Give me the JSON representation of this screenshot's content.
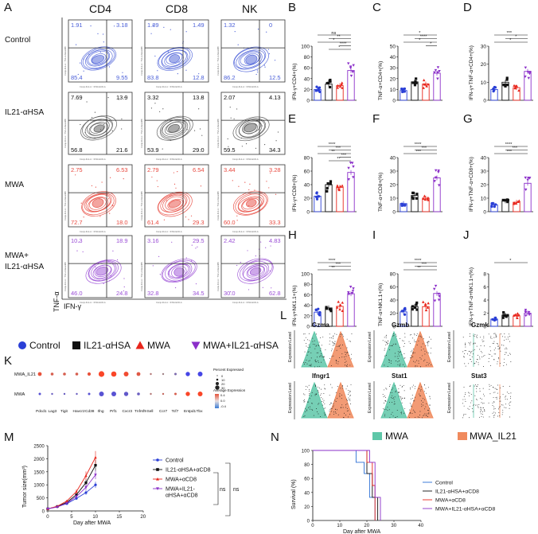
{
  "panels": {
    "A": "A",
    "B": "B",
    "C": "C",
    "D": "D",
    "E": "E",
    "F": "F",
    "G": "G",
    "H": "H",
    "I": "I",
    "J": "J",
    "K": "K",
    "L": "L",
    "M": "M",
    "N": "N"
  },
  "flow": {
    "columns": [
      "CD4",
      "CD8",
      "NK"
    ],
    "rows": [
      "Control",
      "IL21-αHSA",
      "MWA",
      "MWA+\nIL21-αHSA"
    ],
    "y_axis_label": "TNF-α",
    "x_axis_label": "IFN-γ",
    "tiny_axis_texts": [
      "Comp-FL2-A :: IFNG ECD-A",
      "Comp-FL3-A :: TNF-A Alexa488"
    ],
    "colors": [
      "#4a5fd8",
      "#555555",
      "#e8493f",
      "#9b4fd6"
    ],
    "quadrants": [
      [
        [
          "1.91",
          "3.18",
          "85.4",
          "9.55"
        ],
        [
          "1.89",
          "1.49",
          "83.8",
          "12.8"
        ],
        [
          "1.32",
          "0",
          "86.2",
          "12.5"
        ]
      ],
      [
        [
          "7.69",
          "13.9",
          "56.8",
          "21.6"
        ],
        [
          "3.32",
          "13.8",
          "53.9",
          "29.0"
        ],
        [
          "2.07",
          "4.13",
          "59.5",
          "34.3"
        ]
      ],
      [
        [
          "2.75",
          "6.53",
          "72.7",
          "18.0"
        ],
        [
          "2.79",
          "6.54",
          "61.4",
          "29.3"
        ],
        [
          "3.44",
          "3.28",
          "60.0",
          "33.3"
        ]
      ],
      [
        [
          "10.3",
          "18.9",
          "46.0",
          "24.8"
        ],
        [
          "3.16",
          "29.5",
          "32.8",
          "34.5"
        ],
        [
          "2.42",
          "4.83",
          "30.0",
          "62.8"
        ]
      ]
    ]
  },
  "legend_groups": {
    "items": [
      {
        "label": "Control",
        "shape": "circle",
        "color": "#2a3fd6"
      },
      {
        "label": "IL21-αHSA",
        "shape": "square",
        "color": "#111111"
      },
      {
        "label": "MWA",
        "shape": "triangle",
        "color": "#e8261c"
      },
      {
        "label": "MWA+IL21-αHSA",
        "shape": "triangle-down",
        "color": "#8b2fc9"
      }
    ]
  },
  "chart_data": [
    {
      "panel": "B",
      "type": "bar",
      "ylabel": "IFN-γ+CD4+(%)",
      "ylim": [
        0,
        100
      ],
      "yticks": [
        "0",
        "20",
        "40",
        "60",
        "80",
        "100"
      ],
      "categories": [
        "Control",
        "IL21-αHSA",
        "MWA",
        "MWA+IL21-αHSA"
      ],
      "values": [
        20,
        30,
        27,
        55
      ],
      "sig": [
        "ns",
        "**",
        "*",
        "****",
        "*"
      ]
    },
    {
      "panel": "C",
      "type": "bar",
      "ylabel": "TNF-α+CD4+(%)",
      "ylim": [
        0,
        50
      ],
      "yticks": [
        "0",
        "10",
        "20",
        "30",
        "40",
        "50"
      ],
      "categories": [
        "Control",
        "IL21-αHSA",
        "MWA",
        "MWA+IL21-αHSA"
      ],
      "values": [
        9,
        17,
        15,
        25
      ],
      "sig": [
        "*",
        "****",
        "*",
        "*"
      ]
    },
    {
      "panel": "D",
      "type": "bar",
      "ylabel": "IFN-γ+TNF-α+CD4+(%)",
      "ylim": [
        0,
        30
      ],
      "yticks": [
        "0",
        "10",
        "20",
        "30"
      ],
      "categories": [
        "Control",
        "IL21-αHSA",
        "MWA",
        "MWA+IL21-αHSA"
      ],
      "values": [
        6,
        10,
        7,
        16
      ],
      "sig": [
        "***",
        "*",
        "*"
      ]
    },
    {
      "panel": "E",
      "type": "bar",
      "ylabel": "IFN-γ+CD8+(%)",
      "ylim": [
        0,
        80
      ],
      "yticks": [
        "0",
        "20",
        "40",
        "60",
        "80"
      ],
      "categories": [
        "Control",
        "IL21-αHSA",
        "MWA",
        "MWA+IL21-αHSA"
      ],
      "values": [
        23,
        40,
        36,
        58
      ],
      "sig": [
        "****",
        "***",
        "**",
        "***",
        "**"
      ]
    },
    {
      "panel": "F",
      "type": "bar",
      "ylabel": "TNF-α+CD8+(%)",
      "ylim": [
        0,
        40
      ],
      "yticks": [
        "0",
        "10",
        "20",
        "30",
        "40"
      ],
      "categories": [
        "Control",
        "IL21-αHSA",
        "MWA",
        "MWA+IL21-αHSA"
      ],
      "values": [
        6,
        12,
        10,
        25
      ],
      "sig": [
        "****",
        "***",
        "***"
      ]
    },
    {
      "panel": "G",
      "type": "bar",
      "ylabel": "IFN-γ+TNF-α+CD8+(%)",
      "ylim": [
        0,
        40
      ],
      "yticks": [
        "0",
        "10",
        "20",
        "30",
        "40"
      ],
      "categories": [
        "Control",
        "IL21-αHSA",
        "MWA",
        "MWA+IL21-αHSA"
      ],
      "values": [
        5,
        8,
        7,
        21
      ],
      "sig": [
        "****",
        "***",
        "***"
      ]
    },
    {
      "panel": "H",
      "type": "bar",
      "ylabel": "IFN-γ+NK1.1+(%)",
      "ylim": [
        0,
        100
      ],
      "yticks": [
        "0",
        "20",
        "40",
        "60",
        "80",
        "100"
      ],
      "categories": [
        "Control",
        "IL21-αHSA",
        "MWA",
        "MWA+IL21-αHSA"
      ],
      "values": [
        27,
        35,
        38,
        62
      ],
      "sig": [
        "****",
        "***",
        "**"
      ]
    },
    {
      "panel": "I",
      "type": "bar",
      "ylabel": "TNF-α+NK1.1+(%)",
      "ylim": [
        0,
        80
      ],
      "yticks": [
        "0",
        "20",
        "40",
        "60",
        "80"
      ],
      "categories": [
        "Control",
        "IL21-αHSA",
        "MWA",
        "MWA+IL21-αHSA"
      ],
      "values": [
        22,
        30,
        30,
        50
      ],
      "sig": [
        "****",
        "***",
        "**"
      ]
    },
    {
      "panel": "J",
      "type": "bar",
      "ylabel": "IFN-γ+TNF-α+NK1.1+(%)",
      "ylim": [
        0,
        8
      ],
      "yticks": [
        "0",
        "2",
        "4",
        "6",
        "8"
      ],
      "categories": [
        "Control",
        "IL21-αHSA",
        "MWA",
        "MWA+IL21-αHSA"
      ],
      "values": [
        1.1,
        1.7,
        1.6,
        2.0
      ],
      "sig": [
        "*"
      ]
    },
    {
      "panel": "K",
      "type": "scatter",
      "rows": [
        "MWA_IL21",
        "MWA"
      ],
      "genes": [
        "Pdcd1",
        "Lag3",
        "Tigit",
        "Havcr2",
        "Cd38",
        "Ifng",
        "Prf1",
        "Cxcr3",
        "Tnfrsf9",
        "Sell",
        "Ccr7",
        "Tcf7",
        "Entpd1",
        "Tbx"
      ],
      "sizes_top": [
        8,
        6,
        6,
        6,
        7,
        12,
        11,
        10,
        8,
        4,
        4,
        5,
        9,
        10
      ],
      "colors_top": [
        0.4,
        0.3,
        0.3,
        0.3,
        0.4,
        0.5,
        0.5,
        0.45,
        0.35,
        0.1,
        0.0,
        -0.2,
        -0.5,
        -0.5
      ],
      "sizes_bottom": [
        5,
        4,
        4,
        4,
        5,
        10,
        10,
        9,
        6,
        4,
        4,
        5,
        9,
        10
      ],
      "colors_bottom": [
        -0.4,
        -0.3,
        -0.3,
        -0.3,
        -0.4,
        -0.4,
        -0.4,
        -0.35,
        -0.3,
        0.1,
        0.2,
        0.3,
        0.5,
        0.5
      ],
      "legend_size_title": "Percent Expressed",
      "size_ticks": [
        "0",
        "10",
        "20",
        "30"
      ],
      "legend_color_title": "Average Expression",
      "color_ticks": [
        "0.4",
        "0.0",
        "-0.4"
      ]
    },
    {
      "panel": "L",
      "type": "violin",
      "genes": [
        "Gzma",
        "Gzmb",
        "Gzmk",
        "Ifngr1",
        "Stat1",
        "Stat3"
      ],
      "ylabel": "Expression Level",
      "groups": [
        "MWA",
        "MWA_IL21"
      ],
      "group_colors": [
        "#5ec7a8",
        "#f08a5d"
      ]
    },
    {
      "panel": "M",
      "type": "line",
      "xlabel": "Day after MWA",
      "ylabel": "Tumor size(mm³)",
      "ylim": [
        0,
        2500
      ],
      "xlim": [
        0,
        20
      ],
      "yticks": [
        "0",
        "500",
        "1000",
        "1500",
        "2000",
        "2500"
      ],
      "xticks": [
        "0",
        "5",
        "10",
        "15",
        "20"
      ],
      "x": [
        0,
        2,
        4,
        6,
        8,
        10
      ],
      "series": [
        {
          "name": "Control",
          "color": "#2a3fd6",
          "values": [
            80,
            160,
            280,
            480,
            700,
            1000
          ]
        },
        {
          "name": "IL21-αHSA+αCD8",
          "color": "#111111",
          "values": [
            80,
            170,
            330,
            620,
            1080,
            1750
          ]
        },
        {
          "name": "MWA+αCD8",
          "color": "#e8261c",
          "values": [
            80,
            180,
            380,
            740,
            1350,
            2050
          ]
        },
        {
          "name": "MWA+IL21-\nαHSA+αCD8",
          "color": "#8b2fc9",
          "values": [
            80,
            150,
            300,
            550,
            900,
            1380
          ]
        }
      ],
      "annotations": [
        "ns",
        "ns"
      ]
    },
    {
      "panel": "N",
      "type": "line",
      "xlabel": "Day after MWA",
      "ylabel": "Survival (%)",
      "ylim": [
        0,
        100
      ],
      "xlim": [
        0,
        40
      ],
      "yticks": [
        "0",
        "20",
        "40",
        "60",
        "80",
        "100"
      ],
      "xticks": [
        "0",
        "10",
        "20",
        "30",
        "40"
      ],
      "series": [
        {
          "name": "Control",
          "color": "#2a6fd6",
          "steps": [
            [
              0,
              100
            ],
            [
              16,
              100
            ],
            [
              16,
              83
            ],
            [
              19,
              83
            ],
            [
              19,
              67
            ],
            [
              21,
              67
            ],
            [
              21,
              33
            ],
            [
              23,
              33
            ],
            [
              23,
              0
            ]
          ]
        },
        {
          "name": "IL21-αHSA+αCD8",
          "color": "#111111",
          "steps": [
            [
              0,
              100
            ],
            [
              20,
              100
            ],
            [
              20,
              67
            ],
            [
              22,
              67
            ],
            [
              22,
              33
            ],
            [
              24,
              33
            ],
            [
              24,
              0
            ]
          ]
        },
        {
          "name": "MWA+αCD8",
          "color": "#e8261c",
          "steps": [
            [
              0,
              100
            ],
            [
              20,
              100
            ],
            [
              20,
              83
            ],
            [
              22,
              83
            ],
            [
              22,
              50
            ],
            [
              23,
              50
            ],
            [
              23,
              0
            ]
          ]
        },
        {
          "name": "MWA+IL21-αHSA+αCD8",
          "color": "#8b2fc9",
          "steps": [
            [
              0,
              100
            ],
            [
              21,
              100
            ],
            [
              21,
              83
            ],
            [
              23,
              83
            ],
            [
              23,
              33
            ],
            [
              25,
              33
            ],
            [
              25,
              0
            ]
          ]
        }
      ]
    }
  ]
}
